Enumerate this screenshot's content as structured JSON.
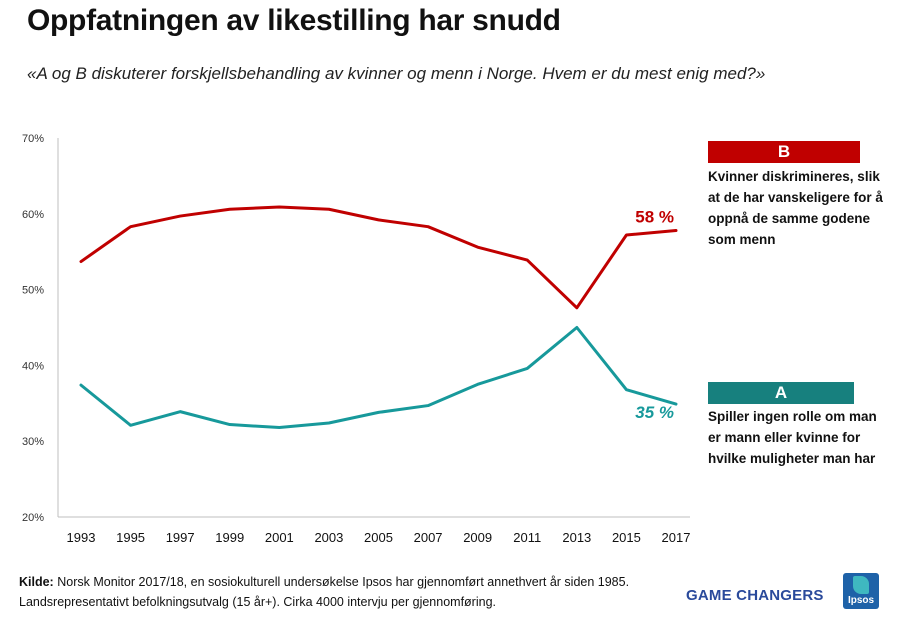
{
  "chart_data": {
    "type": "line",
    "title": "Oppfatningen av likestilling har snudd",
    "subtitle": "«A og B diskuterer forskjellsbehandling av kvinner og menn i Norge. Hvem er du mest enig med?»",
    "xlabel": "",
    "ylabel": "",
    "x": [
      "1993",
      "1995",
      "1997",
      "1999",
      "2001",
      "2003",
      "2005",
      "2007",
      "2009",
      "2011",
      "2013",
      "2015",
      "2017"
    ],
    "ylim": [
      20,
      70
    ],
    "yticks": [
      20,
      30,
      40,
      50,
      60,
      70
    ],
    "ytick_labels": [
      "20%",
      "30%",
      "40%",
      "50%",
      "60%",
      "70%"
    ],
    "grid": false,
    "series": [
      {
        "key": "B",
        "name": "Kvinner diskrimineres, slik at de har vanskeligere for å oppnå de samme godene som menn",
        "color": "#c00000",
        "values": [
          53.7,
          58.3,
          59.7,
          60.6,
          60.9,
          60.6,
          59.2,
          58.3,
          55.6,
          53.9,
          47.6,
          57.2,
          57.8
        ],
        "end_label": "58 %"
      },
      {
        "key": "A",
        "name": "Spiller ingen rolle om man er mann eller kvinne for hvilke muligheter man har",
        "color": "#17999b",
        "values": [
          37.4,
          32.1,
          33.9,
          32.2,
          31.8,
          32.4,
          33.8,
          34.7,
          37.5,
          39.6,
          45.0,
          36.8,
          34.9
        ],
        "end_label": "35 %"
      }
    ]
  },
  "legend": {
    "b_label": "B",
    "b_text": "Kvinner diskrimineres, slik at de har vanskeligere for å oppnå de samme godene som menn",
    "a_label": "A",
    "a_text": "Spiller ingen rolle om man er mann eller kvinne for hvilke muligheter man har"
  },
  "source": {
    "label": "Kilde:",
    "text": "Norsk Monitor 2017/18, en sosiokulturell undersøkelse Ipsos har gjennomført annethvert år siden 1985. Landsrepresentativt befolkningsutvalg (15 år+). Cirka 4000 intervju per gjennomføring."
  },
  "branding": {
    "tagline": "GAME CHANGERS",
    "logo_text": "Ipsos"
  }
}
